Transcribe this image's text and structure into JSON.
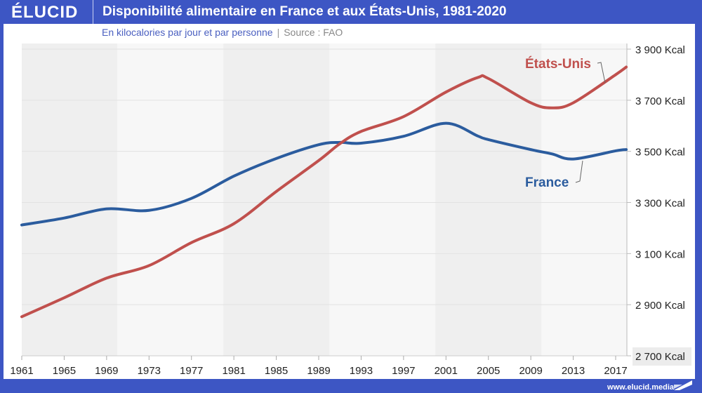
{
  "header": {
    "logo": "ÉLUCID",
    "title": "Disponibilité alimentaire en France et aux États-Unis, 1981-2020"
  },
  "subtitle": {
    "text": "En kilocalories par jour et par personne",
    "separator": "|",
    "source": "Source : FAO"
  },
  "footer": {
    "url": "www.elucid.media"
  },
  "colors": {
    "brand": "#3d56c4",
    "france": "#2b5c9e",
    "usa": "#c0504d",
    "band_dark": "#efefef",
    "band_light": "#f7f7f7"
  },
  "chart_data": {
    "type": "line",
    "title": "Disponibilité alimentaire en France et aux États-Unis, 1981-2020",
    "subtitle": "En kilocalories par jour et par personne | Source : FAO",
    "xlabel": "",
    "ylabel": "",
    "xlim": [
      1961,
      2018
    ],
    "ylim": [
      2700,
      3900
    ],
    "x_ticks": [
      1961,
      1965,
      1969,
      1973,
      1977,
      1981,
      1985,
      1989,
      1993,
      1997,
      2001,
      2005,
      2009,
      2013,
      2017
    ],
    "x_tick_labels": [
      "1961",
      "1965",
      "1969",
      "1973",
      "1977",
      "1981",
      "1985",
      "1989",
      "1993",
      "1997",
      "2001",
      "2005",
      "2009",
      "2013",
      "2017"
    ],
    "y_ticks": [
      2700,
      2900,
      3100,
      3300,
      3500,
      3700,
      3900
    ],
    "y_tick_labels": [
      "2 700 Kcal",
      "2 900 Kcal",
      "3 100 Kcal",
      "3 300 Kcal",
      "3 500 Kcal",
      "3 700 Kcal",
      "3 900 Kcal"
    ],
    "y_axis_position": "right",
    "grid": true,
    "background_bands": [
      [
        1961,
        1970
      ],
      [
        1980,
        1990
      ],
      [
        2000,
        2010
      ]
    ],
    "x": [
      1961,
      1965,
      1969,
      1973,
      1977,
      1981,
      1985,
      1989,
      1991,
      1993,
      1997,
      2001,
      2004,
      2005,
      2009,
      2011,
      2013,
      2017,
      2018
    ],
    "series": [
      {
        "name": "France",
        "label": "France",
        "color": "#2b5c9e",
        "values": [
          3212,
          3239,
          3275,
          3269,
          3316,
          3403,
          3472,
          3526,
          3535,
          3532,
          3559,
          3610,
          3560,
          3546,
          3507,
          3490,
          3470,
          3502,
          3507
        ]
      },
      {
        "name": "États-Unis",
        "label": "États-Unis",
        "color": "#c0504d",
        "values": [
          2853,
          2927,
          3004,
          3053,
          3143,
          3217,
          3343,
          3464,
          3530,
          3578,
          3636,
          3732,
          3789,
          3785,
          3690,
          3670,
          3690,
          3800,
          3830
        ]
      }
    ]
  }
}
